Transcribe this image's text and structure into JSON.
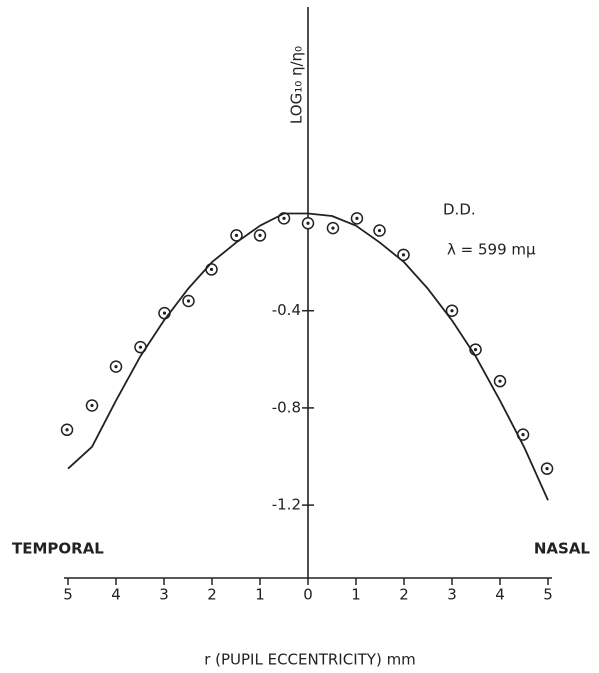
{
  "chart_data": {
    "type": "scatter",
    "ylabel": "LOG₁₀ η/η₀",
    "xlabel": "r (PUPIL ECCENTRICITY) mm",
    "annotations": [
      "D.D.",
      "λ = 599 mμ",
      "TEMPORAL",
      "NASAL"
    ],
    "xlim": [
      -5,
      5
    ],
    "ylim": [
      -1.5,
      0.85
    ],
    "xticks": [
      {
        "value": -5,
        "label": "5"
      },
      {
        "value": -4,
        "label": "4"
      },
      {
        "value": -3,
        "label": "3"
      },
      {
        "value": -2,
        "label": "2"
      },
      {
        "value": -1,
        "label": "1"
      },
      0,
      1,
      2,
      3,
      4,
      5
    ],
    "yticks": [
      -0.4,
      -0.8,
      -1.2
    ],
    "series": [
      {
        "mode": "markers",
        "color": "#222222",
        "x": [
          -5.02,
          -4.5,
          -4.0,
          -3.49,
          -2.99,
          -2.49,
          -2.01,
          -1.49,
          -1.0,
          -0.5,
          0,
          0.52,
          1.02,
          1.49,
          1.99,
          3.0,
          3.49,
          4.0,
          4.48,
          4.98
        ],
        "values": [
          -0.89,
          -0.79,
          -0.63,
          -0.55,
          -0.41,
          -0.36,
          -0.23,
          -0.09,
          -0.09,
          -0.02,
          -0.04,
          -0.06,
          -0.02,
          -0.07,
          -0.17,
          -0.4,
          -0.56,
          -0.69,
          -0.91,
          -1.05
        ]
      },
      {
        "mode": "line",
        "color": "#222222",
        "x": [
          -5,
          -4.5,
          -4,
          -3.5,
          -3,
          -2.5,
          -2,
          -1.5,
          -1,
          -0.5,
          0,
          0.5,
          1,
          1.5,
          2,
          2.5,
          3,
          3.5,
          4,
          4.5,
          5
        ],
        "values": [
          -1.05,
          -0.96,
          -0.77,
          -0.59,
          -0.44,
          -0.31,
          -0.2,
          -0.12,
          -0.05,
          0,
          0,
          -0.01,
          -0.05,
          -0.12,
          -0.2,
          -0.31,
          -0.44,
          -0.59,
          -0.77,
          -0.96,
          -1.18
        ]
      }
    ]
  }
}
